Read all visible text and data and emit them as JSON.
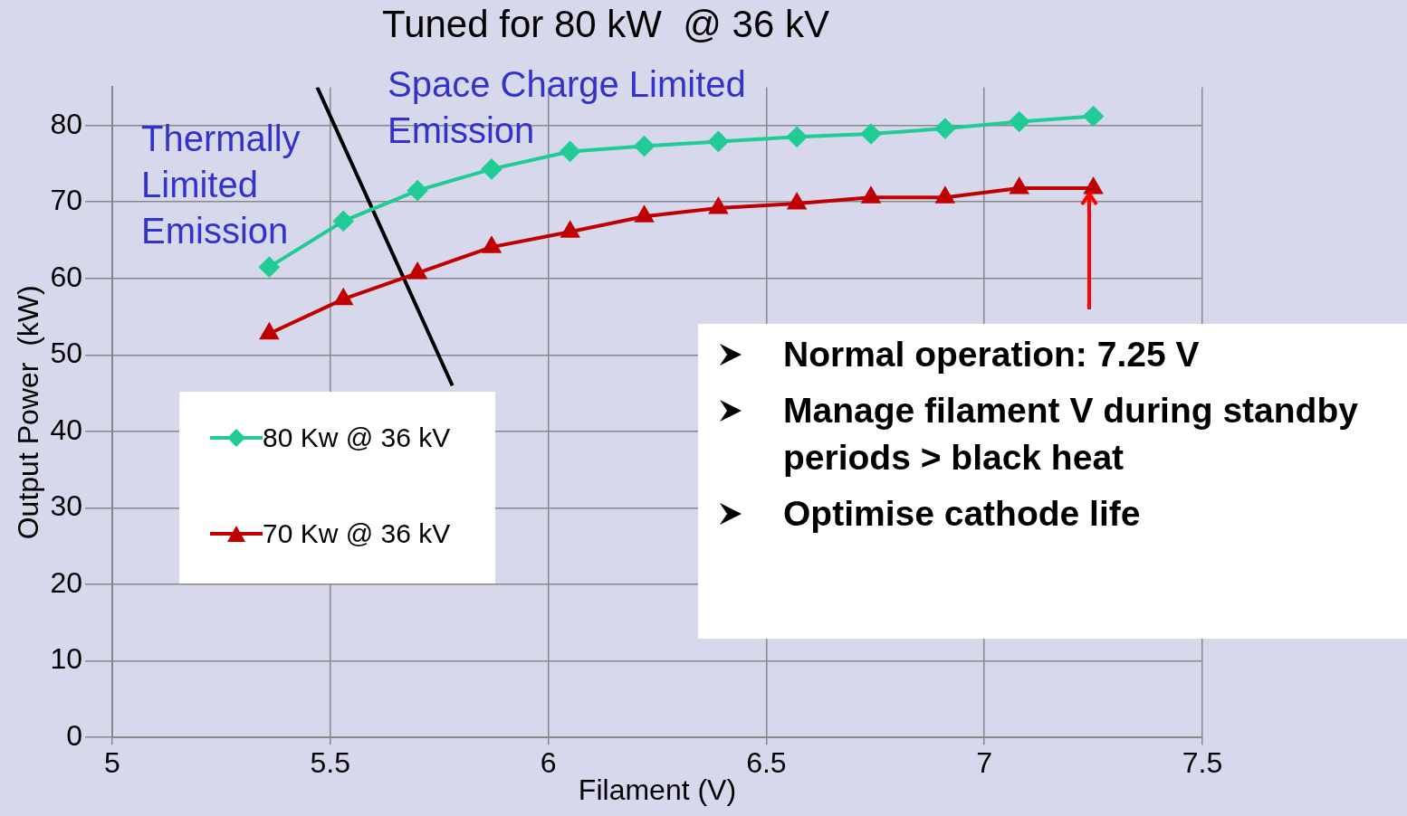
{
  "chart_data": {
    "type": "line",
    "title": "Tuned for 80 kW  @ 36 kV",
    "xlabel": "Filament (V)",
    "ylabel": "Output Power  (kW)",
    "x": [
      5.36,
      5.53,
      5.7,
      5.87,
      6.05,
      6.22,
      6.39,
      6.57,
      6.74,
      6.91,
      7.08,
      7.25
    ],
    "series": [
      {
        "name": "80 Kw @ 36 kV",
        "color": "#1fcc96",
        "marker": "diamond",
        "values": [
          61.5,
          67.5,
          71.5,
          74.3,
          76.6,
          77.3,
          77.9,
          78.5,
          78.9,
          79.6,
          80.5,
          81.2
        ]
      },
      {
        "name": "70 Kw @ 36 kV",
        "color": "#c00000",
        "marker": "triangle",
        "values": [
          52.8,
          57.3,
          60.7,
          64.1,
          66.1,
          68.1,
          69.2,
          69.8,
          70.6,
          70.6,
          71.8,
          71.8
        ]
      },
      {
        "color": "#000000",
        "marker": "none",
        "x": [
          5.47,
          5.78
        ],
        "values": [
          85,
          46
        ]
      }
    ],
    "xlim": [
      5,
      7.5
    ],
    "xticks": [
      5,
      5.5,
      6,
      6.5,
      7,
      7.5
    ],
    "ylim": [
      0,
      85
    ],
    "yticks": [
      0,
      10,
      20,
      30,
      40,
      50,
      60,
      70,
      80
    ],
    "grid": true,
    "legend": "bottom left",
    "annotations": [
      "Thermally Limited Emission",
      "Space Charge Limited Emission",
      {
        "text": "Normal operation: 7.25 V",
        "x": 7.25,
        "y": 71.8
      },
      "Manage filament V during standby periods > black heat",
      "Optimise cathode life"
    ]
  }
}
